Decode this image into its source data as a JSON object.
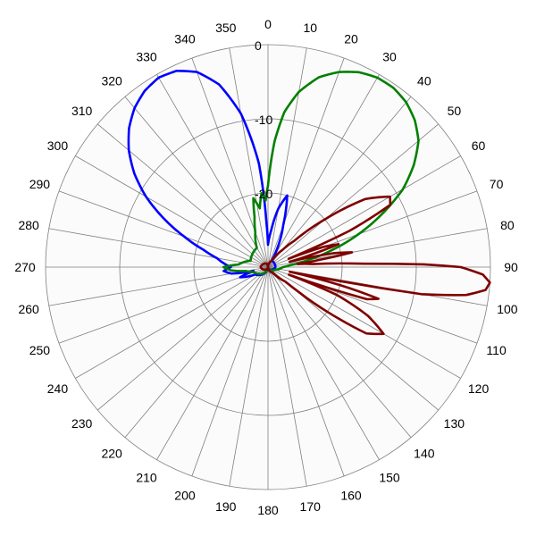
{
  "chart_data": {
    "type": "polar-line",
    "angle_unit": "degrees",
    "angle_zero": "top",
    "angle_direction": "clockwise",
    "angle_step": 10,
    "angle_ticks": [
      "0",
      "10",
      "20",
      "30",
      "40",
      "50",
      "60",
      "70",
      "80",
      "90",
      "100",
      "110",
      "120",
      "130",
      "140",
      "150",
      "160",
      "170",
      "180",
      "190",
      "200",
      "210",
      "220",
      "230",
      "240",
      "250",
      "260",
      "270",
      "280",
      "290",
      "300",
      "310",
      "320",
      "330",
      "340",
      "350"
    ],
    "radial_range": [
      -30,
      0
    ],
    "radial_ticks": [
      0,
      -10,
      -20
    ],
    "radial_tick_labels": [
      "0",
      "-10",
      "-20"
    ],
    "grid": true,
    "background": "#fbfbfb",
    "series": [
      {
        "color": "#0000ff",
        "points": [
          [
            0,
            -27
          ],
          [
            5,
            -25
          ],
          [
            10,
            -22
          ],
          [
            15,
            -20
          ],
          [
            20,
            -24
          ],
          [
            30,
            -29
          ],
          [
            90,
            -29
          ],
          [
            180,
            -30
          ],
          [
            240,
            -28
          ],
          [
            250,
            -26
          ],
          [
            255,
            -28
          ],
          [
            260,
            -25
          ],
          [
            265,
            -24
          ],
          [
            270,
            -25
          ],
          [
            275,
            -24
          ],
          [
            280,
            -23
          ],
          [
            285,
            -21
          ],
          [
            290,
            -18
          ],
          [
            295,
            -14.5
          ],
          [
            300,
            -11
          ],
          [
            305,
            -8
          ],
          [
            310,
            -5.5
          ],
          [
            315,
            -3.5
          ],
          [
            320,
            -2
          ],
          [
            325,
            -1
          ],
          [
            330,
            -0.5
          ],
          [
            335,
            -0.8
          ],
          [
            340,
            -2
          ],
          [
            345,
            -4.5
          ],
          [
            350,
            -9
          ],
          [
            355,
            -16
          ],
          [
            358,
            -24
          ]
        ]
      },
      {
        "color": "#008000",
        "points": [
          [
            0,
            -19
          ],
          [
            3,
            -13
          ],
          [
            6,
            -9
          ],
          [
            10,
            -6
          ],
          [
            15,
            -3.5
          ],
          [
            20,
            -2
          ],
          [
            25,
            -1
          ],
          [
            30,
            -0.5
          ],
          [
            35,
            -0.5
          ],
          [
            40,
            -1
          ],
          [
            45,
            -2
          ],
          [
            50,
            -3.5
          ],
          [
            55,
            -6
          ],
          [
            60,
            -9
          ],
          [
            65,
            -13
          ],
          [
            70,
            -17
          ],
          [
            75,
            -21
          ],
          [
            80,
            -24.5
          ],
          [
            85,
            -27
          ],
          [
            90,
            -28
          ],
          [
            110,
            -29
          ],
          [
            180,
            -30
          ],
          [
            250,
            -28
          ],
          [
            260,
            -27
          ],
          [
            265,
            -25
          ],
          [
            270,
            -24
          ],
          [
            275,
            -26
          ],
          [
            290,
            -27.5
          ],
          [
            330,
            -27
          ],
          [
            340,
            -25
          ],
          [
            345,
            -23
          ],
          [
            348,
            -20.5
          ],
          [
            352,
            -22
          ],
          [
            355,
            -20
          ],
          [
            358,
            -21
          ]
        ]
      },
      {
        "color": "#7f0000",
        "points": [
          [
            0,
            -30
          ],
          [
            30,
            -29
          ],
          [
            40,
            -27
          ],
          [
            45,
            -25
          ],
          [
            50,
            -20
          ],
          [
            55,
            -14
          ],
          [
            60,
            -11
          ],
          [
            63,
            -11.5
          ],
          [
            66,
            -18
          ],
          [
            68,
            -27
          ],
          [
            70,
            -22
          ],
          [
            72,
            -20
          ],
          [
            74,
            -24
          ],
          [
            76,
            -27
          ],
          [
            78,
            -21
          ],
          [
            80,
            -18.5
          ],
          [
            82,
            -23
          ],
          [
            84,
            -26
          ],
          [
            86,
            -24
          ],
          [
            88,
            -17
          ],
          [
            89,
            -9
          ],
          [
            90,
            -4
          ],
          [
            92,
            -1
          ],
          [
            94,
            0
          ],
          [
            96,
            -0.5
          ],
          [
            98,
            -3
          ],
          [
            100,
            -9
          ],
          [
            101,
            -20
          ],
          [
            102,
            -27
          ],
          [
            104,
            -20
          ],
          [
            106,
            -14.5
          ],
          [
            108,
            -16
          ],
          [
            110,
            -27
          ],
          [
            112,
            -20
          ],
          [
            116,
            -15
          ],
          [
            120,
            -12
          ],
          [
            124,
            -14
          ],
          [
            128,
            -22
          ],
          [
            130,
            -27
          ],
          [
            140,
            -29
          ],
          [
            180,
            -30
          ],
          [
            270,
            -29
          ],
          [
            340,
            -29.5
          ]
        ]
      }
    ]
  }
}
